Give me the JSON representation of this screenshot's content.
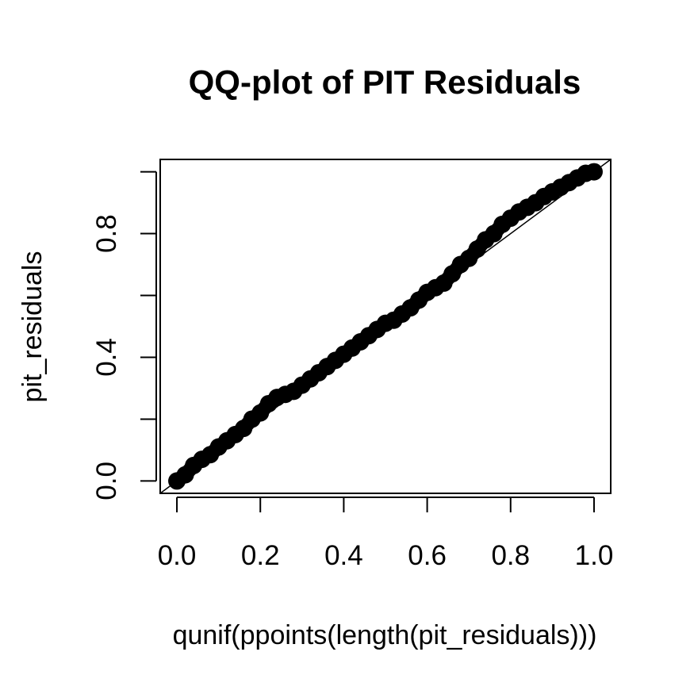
{
  "chart_data": {
    "type": "scatter",
    "title": "QQ-plot of PIT Residuals",
    "xlabel": "qunif(ppoints(length(pit_residuals)))",
    "ylabel": "pit_residuals",
    "xlim": [
      -0.04,
      1.04
    ],
    "ylim": [
      -0.04,
      1.04
    ],
    "x_ticks": [
      0.0,
      0.2,
      0.4,
      0.6,
      0.8,
      1.0
    ],
    "x_tick_labels": [
      "0.0",
      "0.2",
      "0.4",
      "0.6",
      "0.8",
      "1.0"
    ],
    "y_ticks": [
      0.0,
      0.2,
      0.4,
      0.6,
      0.8,
      1.0
    ],
    "y_tick_labels": [
      "0.0",
      "",
      "0.4",
      "",
      "0.8",
      ""
    ],
    "reference_line": {
      "from": [
        -0.04,
        -0.04
      ],
      "to": [
        1.04,
        1.04
      ]
    },
    "grid": false,
    "legend": false,
    "point_color": "#000000",
    "series": [
      {
        "x": [
          0.0,
          0.02,
          0.04,
          0.06,
          0.08,
          0.1,
          0.12,
          0.14,
          0.16,
          0.18,
          0.2,
          0.22,
          0.24,
          0.26,
          0.28,
          0.3,
          0.32,
          0.34,
          0.36,
          0.38,
          0.4,
          0.42,
          0.44,
          0.46,
          0.48,
          0.5,
          0.52,
          0.54,
          0.56,
          0.58,
          0.6,
          0.62,
          0.64,
          0.66,
          0.68,
          0.7,
          0.72,
          0.74,
          0.76,
          0.78,
          0.8,
          0.82,
          0.84,
          0.86,
          0.88,
          0.9,
          0.92,
          0.94,
          0.96,
          0.98,
          1.0
        ],
        "y": [
          0.0,
          0.02,
          0.05,
          0.07,
          0.085,
          0.11,
          0.13,
          0.15,
          0.17,
          0.2,
          0.22,
          0.25,
          0.27,
          0.28,
          0.29,
          0.31,
          0.33,
          0.35,
          0.37,
          0.39,
          0.41,
          0.43,
          0.45,
          0.47,
          0.49,
          0.51,
          0.52,
          0.54,
          0.56,
          0.585,
          0.61,
          0.625,
          0.64,
          0.67,
          0.7,
          0.72,
          0.75,
          0.78,
          0.8,
          0.83,
          0.85,
          0.87,
          0.885,
          0.9,
          0.92,
          0.935,
          0.95,
          0.965,
          0.98,
          0.995,
          1.0
        ]
      }
    ]
  }
}
